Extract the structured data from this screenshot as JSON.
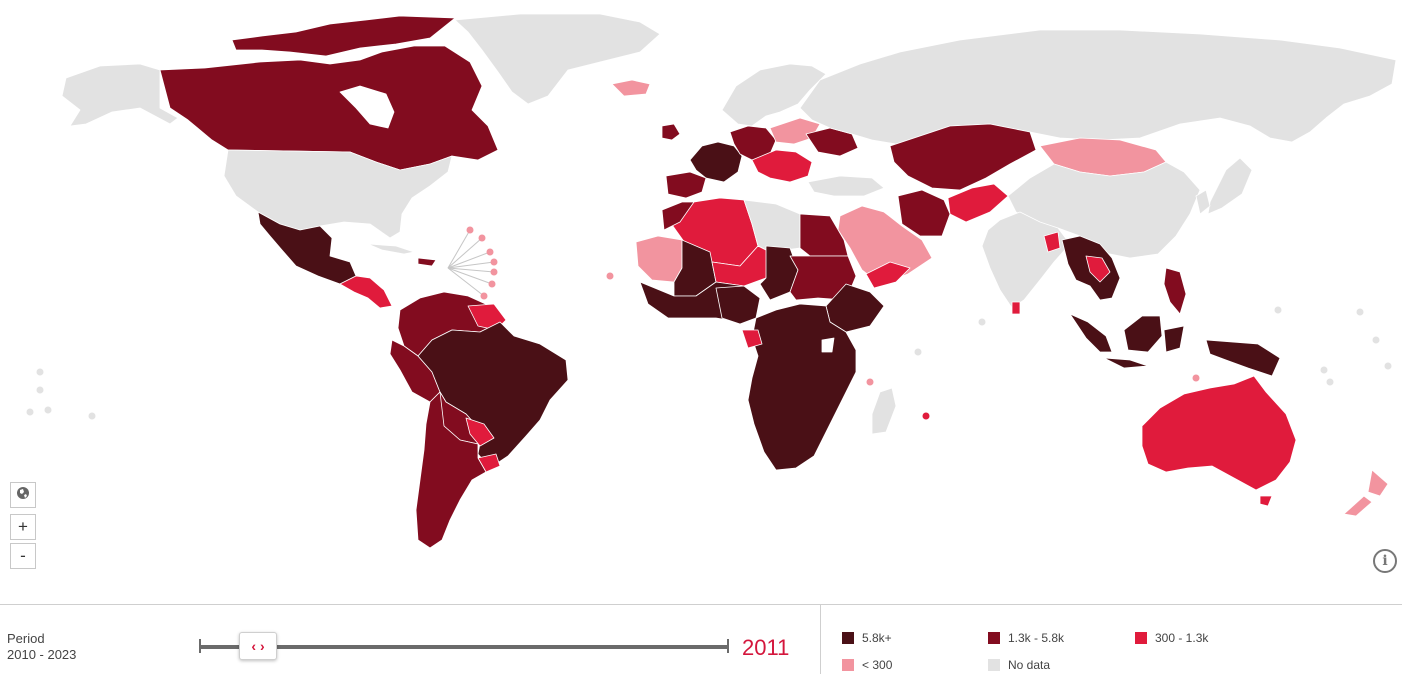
{
  "map": {
    "colors": {
      "c1": "#4a1016",
      "c2": "#820c1f",
      "c3": "#e01b3c",
      "c4": "#f2949f",
      "none": "#e2e2e2",
      "border": "#ffffff",
      "marker_line": "#c6c6c6"
    },
    "controls": {
      "globe_icon": "globe-icon",
      "zoom_in_label": "+",
      "zoom_out_label": "-",
      "info_icon": "info-icon",
      "info_label": "i"
    }
  },
  "period": {
    "label": "Period",
    "range": "2010 - 2023",
    "selected_year": "2011",
    "handle_icon": "chevron-left-right-icon",
    "handle_label": "‹ ›"
  },
  "legend": {
    "items": [
      {
        "label": "5.8k+",
        "color": "#4a1016"
      },
      {
        "label": "1.3k - 5.8k",
        "color": "#820c1f"
      },
      {
        "label": "300 - 1.3k",
        "color": "#e01b3c"
      },
      {
        "label": "< 300",
        "color": "#f2949f"
      },
      {
        "label": "No data",
        "color": "#e2e2e2"
      }
    ]
  }
}
